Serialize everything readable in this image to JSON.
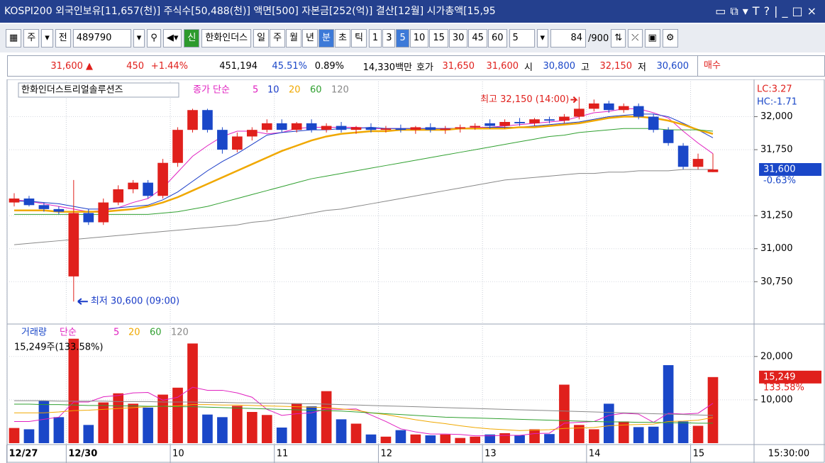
{
  "window": {
    "title": "KOSPI200 외국인보유[11,657(천)] 주식수[50,488(천)] 액면[500] 자본금[252(억)] 결산[12월] 시가총액[15,95"
  },
  "toolbar": {
    "market": "주",
    "mode": "전",
    "code": "489790",
    "badge": "신",
    "name": "한화인더스",
    "periods": [
      "일",
      "주",
      "월",
      "년",
      "분",
      "초",
      "틱"
    ],
    "minutes": [
      "1",
      "3",
      "5",
      "10",
      "15",
      "30",
      "45",
      "60"
    ],
    "interval": "5",
    "count": "84",
    "max": "/900"
  },
  "quote": {
    "price": "31,600 ▲",
    "change": "450",
    "rate": "+1.44%",
    "volume": "451,194",
    "ratio1": "45.51%",
    "ratio2": "0.89%",
    "amount": "14,330백만",
    "ask_label": "호가",
    "ask": "31,650",
    "bid": "31,600",
    "open_label": "시",
    "open": "30,800",
    "high_label": "고",
    "high": "32,150",
    "low_label": "저",
    "low": "30,600",
    "buy": "매수"
  },
  "chart_data": [
    {
      "type": "candlestick",
      "title": "한화인더스트리얼솔루션즈",
      "legend_prefix": "종가 단순",
      "lc": "LC:3.27",
      "hc": "HC:-1.71",
      "high_note": "최고 32,150 (14:00)",
      "low_note": "최저 30,600 (09:00)",
      "ylim": [
        30440,
        32250
      ],
      "yticks": [
        {
          "value": 30750,
          "label": "30,750"
        },
        {
          "value": 31000,
          "label": "31,000"
        },
        {
          "value": 31250,
          "label": "31,250"
        },
        {
          "value": 31750,
          "label": "31,750"
        },
        {
          "value": 32000,
          "label": "32,000"
        }
      ],
      "last": {
        "value": 31600,
        "label": "31,600"
      },
      "last_change": "-0.63%",
      "up_color": "#e0201c",
      "down_color": "#1a47c8",
      "open": [
        31350,
        31380,
        31330,
        31300,
        30790,
        31270,
        31200,
        31350,
        31450,
        31500,
        31400,
        31650,
        31900,
        32050,
        31900,
        31750,
        31850,
        31900,
        31950,
        31900,
        31950,
        31900,
        31930,
        31900,
        31920,
        31900,
        31910,
        31900,
        31920,
        31900,
        31910,
        31920,
        31950,
        31930,
        31960,
        31950,
        31980,
        31970,
        32000,
        32060,
        32100,
        32050,
        32080,
        32000,
        31900,
        31780,
        31620,
        31580
      ],
      "high": [
        31420,
        31400,
        31350,
        31320,
        31520,
        31300,
        31380,
        31480,
        31520,
        31520,
        31680,
        31920,
        32060,
        32060,
        31920,
        31880,
        31920,
        31980,
        31980,
        31960,
        31980,
        31950,
        31960,
        31930,
        31950,
        31930,
        31940,
        31930,
        31950,
        31930,
        31940,
        31950,
        31980,
        31980,
        31990,
        31990,
        32000,
        32020,
        32150,
        32130,
        32120,
        32100,
        32100,
        32020,
        31920,
        31800,
        31720,
        31720
      ],
      "low": [
        31320,
        31320,
        31280,
        31260,
        30600,
        31180,
        31180,
        31330,
        31420,
        31380,
        31380,
        31620,
        31880,
        31880,
        31720,
        31730,
        31820,
        31880,
        31880,
        31880,
        31880,
        31880,
        31880,
        31870,
        31880,
        31880,
        31880,
        31870,
        31880,
        31870,
        31880,
        31900,
        31910,
        31910,
        31930,
        31930,
        31950,
        31950,
        31980,
        32040,
        32030,
        32030,
        31980,
        31880,
        31780,
        31600,
        31600,
        31580
      ],
      "close": [
        31380,
        31330,
        31300,
        31280,
        31270,
        31200,
        31350,
        31450,
        31500,
        31400,
        31650,
        31900,
        32050,
        31900,
        31750,
        31850,
        31900,
        31950,
        31900,
        31950,
        31900,
        31930,
        31900,
        31920,
        31900,
        31910,
        31900,
        31920,
        31900,
        31910,
        31920,
        31930,
        31930,
        31960,
        31950,
        31980,
        31970,
        32000,
        32060,
        32100,
        32050,
        32080,
        32000,
        31900,
        31800,
        31620,
        31680,
        31600
      ],
      "series": [
        {
          "name": "5",
          "color": "#e020c0",
          "values": [
            31370,
            31360,
            31340,
            31320,
            31300,
            31280,
            31290,
            31310,
            31350,
            31380,
            31460,
            31580,
            31700,
            31780,
            31850,
            31890,
            31890,
            31870,
            31880,
            31910,
            31920,
            31920,
            31920,
            31920,
            31910,
            31910,
            31910,
            31910,
            31910,
            31910,
            31910,
            31920,
            31920,
            31930,
            31940,
            31950,
            31960,
            31970,
            32000,
            32030,
            32040,
            32060,
            32060,
            32030,
            31990,
            31890,
            31800,
            31720
          ]
        },
        {
          "name": "10",
          "color": "#1a3cc8",
          "values": [
            31360,
            31360,
            31350,
            31340,
            31320,
            31300,
            31300,
            31310,
            31320,
            31330,
            31370,
            31430,
            31510,
            31590,
            31660,
            31720,
            31790,
            31860,
            31880,
            31890,
            31900,
            31900,
            31910,
            31910,
            31920,
            31910,
            31910,
            31910,
            31910,
            31910,
            31910,
            31910,
            31920,
            31920,
            31920,
            31930,
            31940,
            31950,
            31960,
            31980,
            32000,
            32010,
            32020,
            32020,
            32000,
            31950,
            31900,
            31840
          ]
        },
        {
          "name": "20",
          "color": "#f0a800",
          "values": [
            31290,
            31290,
            31290,
            31280,
            31280,
            31280,
            31280,
            31290,
            31300,
            31320,
            31350,
            31390,
            31440,
            31490,
            31540,
            31590,
            31640,
            31690,
            31740,
            31780,
            31820,
            31850,
            31870,
            31880,
            31890,
            31890,
            31900,
            31900,
            31900,
            31900,
            31910,
            31910,
            31910,
            31910,
            31920,
            31920,
            31930,
            31940,
            31950,
            31970,
            31990,
            32000,
            32000,
            31990,
            31970,
            31940,
            31900,
            31870
          ]
        },
        {
          "name": "60",
          "color": "#30a030",
          "values": [
            31260,
            31260,
            31260,
            31260,
            31260,
            31260,
            31260,
            31260,
            31260,
            31260,
            31270,
            31280,
            31300,
            31320,
            31350,
            31380,
            31410,
            31440,
            31470,
            31500,
            31530,
            31550,
            31570,
            31590,
            31610,
            31630,
            31650,
            31670,
            31690,
            31710,
            31730,
            31750,
            31770,
            31790,
            31810,
            31830,
            31850,
            31860,
            31880,
            31890,
            31900,
            31910,
            31910,
            31910,
            31900,
            31900,
            31900,
            31890
          ]
        },
        {
          "name": "120",
          "color": "#888888",
          "values": [
            31030,
            31040,
            31050,
            31060,
            31070,
            31080,
            31090,
            31100,
            31110,
            31120,
            31130,
            31140,
            31150,
            31160,
            31170,
            31180,
            31200,
            31210,
            31230,
            31250,
            31270,
            31290,
            31300,
            31320,
            31340,
            31360,
            31380,
            31400,
            31420,
            31440,
            31460,
            31480,
            31500,
            31520,
            31530,
            31540,
            31550,
            31560,
            31570,
            31570,
            31580,
            31580,
            31590,
            31590,
            31590,
            31600,
            31600,
            31600
          ]
        }
      ]
    },
    {
      "type": "bar",
      "title": "거래량",
      "legend_prefix": "단순",
      "info": "15,249주(133.58%)",
      "categories": [
        "12/27",
        null,
        null,
        null,
        "12/30",
        null,
        null,
        null,
        null,
        null,
        null,
        "10",
        null,
        null,
        null,
        null,
        null,
        null,
        "11",
        null,
        null,
        null,
        null,
        null,
        null,
        "12",
        null,
        null,
        null,
        null,
        null,
        null,
        "13",
        null,
        null,
        null,
        null,
        null,
        null,
        "14",
        null,
        null,
        null,
        null,
        null,
        null,
        "15",
        null
      ],
      "time": "15:30:00",
      "ylim": [
        0,
        27000
      ],
      "yticks": [
        {
          "value": 10000,
          "label": "10,000"
        },
        {
          "value": 20000,
          "label": "20,000"
        }
      ],
      "last": {
        "value": 15249,
        "label": "15,249"
      },
      "last_ratio": "133.58%",
      "values": [
        3500,
        3200,
        9800,
        6000,
        24100,
        4200,
        9400,
        11500,
        9100,
        8200,
        11200,
        12800,
        23000,
        6600,
        6000,
        8600,
        7200,
        6500,
        3600,
        9200,
        8500,
        12000,
        5500,
        4500,
        2000,
        1500,
        3000,
        2000,
        1800,
        2000,
        1200,
        1500,
        2000,
        2300,
        1800,
        3200,
        2100,
        13500,
        4200,
        3200,
        9100,
        5000,
        3700,
        3800,
        18000,
        5000,
        4000,
        15249
      ],
      "series": [
        {
          "name": "5",
          "color": "#e020c0",
          "values": [
            5000,
            5000,
            5500,
            6000,
            9500,
            9500,
            10700,
            11000,
            11600,
            11700,
            9900,
            10600,
            12900,
            12200,
            12200,
            11600,
            10600,
            7800,
            6400,
            6800,
            7000,
            7900,
            7800,
            7900,
            6500,
            5000,
            3300,
            2600,
            2100,
            2100,
            2000,
            1700,
            1700,
            1800,
            1800,
            2200,
            2300,
            4600,
            4800,
            5000,
            6400,
            6900,
            6700,
            4800,
            6900,
            6700,
            6900,
            9200
          ]
        },
        {
          "name": "20",
          "color": "#f0a800",
          "values": [
            7000,
            7000,
            7000,
            7200,
            7500,
            7600,
            7800,
            8000,
            8200,
            8400,
            8500,
            8600,
            8900,
            8900,
            8800,
            8800,
            8700,
            8600,
            8500,
            8400,
            8300,
            8200,
            7900,
            7600,
            7000,
            6600,
            6000,
            5400,
            4900,
            4500,
            4000,
            3600,
            3300,
            3100,
            2900,
            3000,
            3100,
            3400,
            3500,
            3600,
            4000,
            4200,
            4300,
            4400,
            5000,
            5100,
            5300,
            5900
          ]
        },
        {
          "name": "60",
          "color": "#30a030",
          "values": [
            9000,
            9000,
            8900,
            8900,
            8800,
            8700,
            8700,
            8600,
            8600,
            8500,
            8500,
            8400,
            8400,
            8300,
            8200,
            8100,
            8000,
            7900,
            7800,
            7700,
            7600,
            7500,
            7400,
            7200,
            7000,
            6800,
            6600,
            6400,
            6200,
            6000,
            5900,
            5800,
            5700,
            5600,
            5500,
            5400,
            5300,
            5200,
            5100,
            5000,
            4900,
            4900,
            4800,
            4800,
            4700,
            4700,
            4600,
            4600
          ]
        },
        {
          "name": "120",
          "color": "#888888",
          "values": [
            9800,
            9800,
            9800,
            9700,
            9700,
            9700,
            9700,
            9600,
            9600,
            9600,
            9500,
            9500,
            9500,
            9400,
            9400,
            9300,
            9300,
            9200,
            9200,
            9100,
            9100,
            9000,
            8900,
            8800,
            8700,
            8600,
            8500,
            8400,
            8300,
            8200,
            8100,
            8000,
            7900,
            7800,
            7700,
            7600,
            7500,
            7400,
            7300,
            7200,
            7100,
            7000,
            6900,
            6800,
            6700,
            6600,
            6500,
            6400
          ]
        }
      ]
    }
  ]
}
